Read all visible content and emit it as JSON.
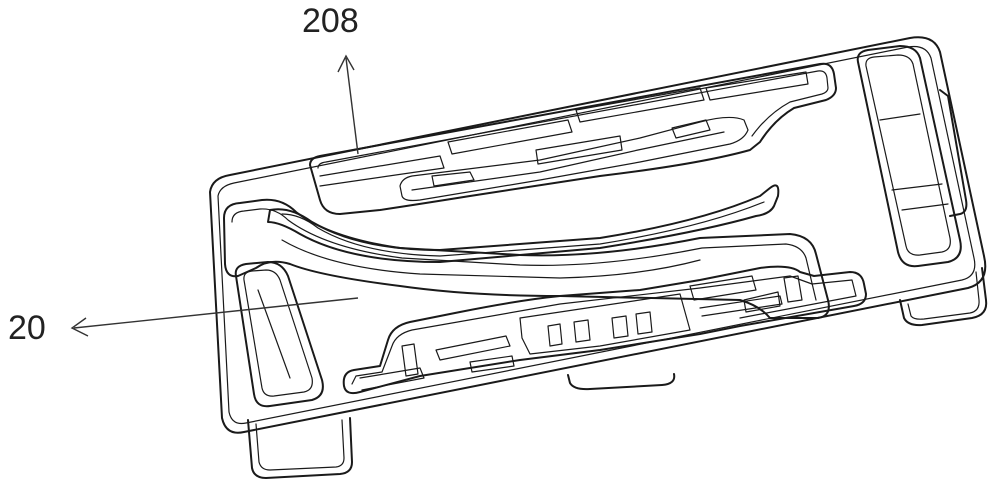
{
  "labels": {
    "part_208": "208",
    "part_20": "20"
  },
  "colors": {
    "line": "#1a1a1a",
    "background": "#ffffff"
  }
}
